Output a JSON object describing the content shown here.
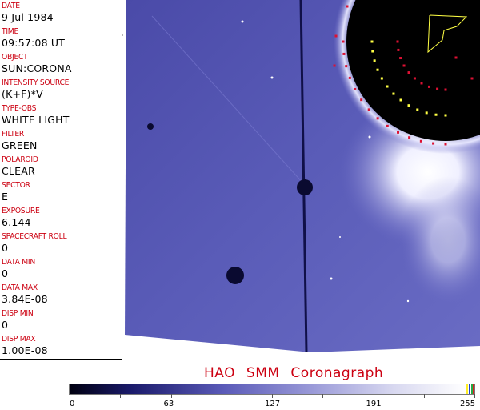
{
  "header_fields": [
    {
      "label": "DATE",
      "value": "9 Jul 1984"
    },
    {
      "label": "TIME",
      "value": "09:57:08 UT"
    },
    {
      "label": "OBJECT",
      "value": "SUN:CORONA"
    },
    {
      "label": "INTENSITY SOURCE",
      "value": "(K+F)*V"
    },
    {
      "label": "TYPE-OBS",
      "value": "WHITE LIGHT"
    },
    {
      "label": "FILTER",
      "value": "GREEN"
    },
    {
      "label": "POLAROID",
      "value": "CLEAR"
    },
    {
      "label": "SECTOR",
      "value": "E"
    },
    {
      "label": "EXPOSURE",
      "value": "6.144"
    },
    {
      "label": "SPACECRAFT ROLL",
      "value": "0"
    },
    {
      "label": "DATA MIN",
      "value": "0"
    },
    {
      "label": "DATA MAX",
      "value": "3.84E-08"
    },
    {
      "label": "DISP MIN",
      "value": "0"
    },
    {
      "label": "DISP MAX",
      "value": "1.00E-08"
    }
  ],
  "title": "HAO SMM Coronagraph",
  "colorbar": {
    "min": 0,
    "max": 255,
    "tick_labels": [
      "0",
      "63",
      "127",
      "191",
      "255"
    ],
    "colors": {
      "low": "#000010",
      "mid": "#5a5ab8",
      "high": "#ffffff"
    }
  },
  "colors": {
    "label": "#cc0011",
    "marker_red": "#dd1133",
    "marker_yellow": "#ffff44"
  }
}
